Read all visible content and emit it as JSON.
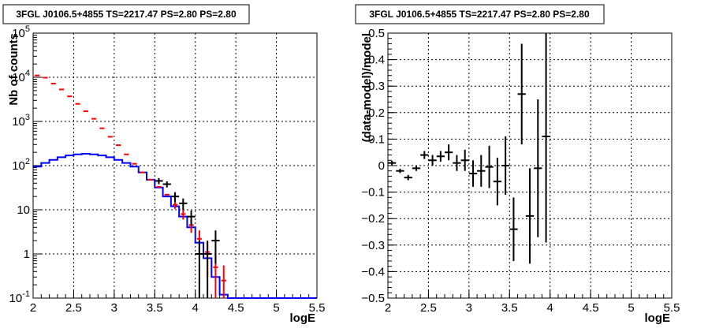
{
  "chart_data": [
    {
      "type": "step",
      "title": "3FGL J0106.5+4855 TS=2217.47 PS=2.80 PS=2.80",
      "xlabel": "logE",
      "ylabel": "Nb of counts",
      "xlim": [
        2,
        5.5
      ],
      "ylim": [
        0.1,
        100000
      ],
      "yscale": "log",
      "grid": true,
      "x_ticks": [
        "2",
        "2.5",
        "3",
        "3.5",
        "4",
        "4.5",
        "5",
        "5.5"
      ],
      "y_ticks": [
        {
          "value": 0.1,
          "label": "10",
          "exp": "-1"
        },
        {
          "value": 1,
          "label": "1",
          "exp": ""
        },
        {
          "value": 10,
          "label": "10",
          "exp": ""
        },
        {
          "value": 100,
          "label": "10",
          "exp": "2"
        },
        {
          "value": 1000,
          "label": "10",
          "exp": "3"
        },
        {
          "value": 10000,
          "label": "10",
          "exp": "4"
        },
        {
          "value": 100000,
          "label": "10",
          "exp": "5"
        }
      ],
      "series": [
        {
          "color": "#0000ff",
          "bin_width": 0.1,
          "x": [
            2.05,
            2.15,
            2.25,
            2.35,
            2.45,
            2.55,
            2.65,
            2.75,
            2.85,
            2.95,
            3.05,
            3.15,
            3.25,
            3.35,
            3.45,
            3.55,
            3.65,
            3.75,
            3.85,
            3.95,
            4.05,
            4.15,
            4.25,
            4.35,
            4.45,
            4.55,
            4.65,
            4.75,
            4.85,
            4.95,
            5.05,
            5.15,
            5.25,
            5.35,
            5.45
          ],
          "y": [
            95,
            115,
            135,
            155,
            170,
            180,
            185,
            180,
            170,
            155,
            135,
            115,
            95,
            70,
            48,
            32,
            20,
            12,
            7,
            4,
            1.8,
            0.8,
            0.3,
            0.12,
            0.1,
            0.1,
            0.1,
            0.1,
            0.1,
            0.1,
            0.1,
            0.1,
            0.1,
            0.1,
            0.1
          ]
        },
        {
          "color": "#ff0000",
          "bin_width": 0.1,
          "x": [
            2.05,
            2.15,
            2.25,
            2.35,
            2.45,
            2.55,
            2.65,
            2.75,
            2.85,
            2.95,
            3.05,
            3.15,
            3.25,
            3.35,
            3.45,
            3.55,
            3.65,
            3.75,
            3.85,
            3.95,
            4.05,
            4.15,
            4.25,
            4.35
          ],
          "y": [
            11000,
            9800,
            7200,
            5300,
            3700,
            2500,
            1700,
            1150,
            700,
            450,
            290,
            180,
            110,
            70,
            48,
            33,
            22,
            13,
            8,
            4.5,
            2.2,
            1.1,
            0.5,
            0.25
          ],
          "err": [
            0,
            0,
            0,
            0,
            0,
            0,
            0,
            0,
            0,
            0,
            0,
            0,
            0,
            0,
            0,
            0,
            0,
            2.5,
            2,
            1.5,
            1.2,
            0.8,
            0.5,
            0.3
          ]
        },
        {
          "color": "#000000",
          "x": [
            3.55,
            3.65,
            3.75,
            3.85,
            3.95,
            4.05,
            4.15,
            4.25
          ],
          "y": [
            45,
            38,
            20,
            14,
            7,
            1,
            1,
            2
          ],
          "err": [
            7,
            6,
            5,
            4,
            2.6,
            1,
            1,
            1.4
          ]
        }
      ]
    },
    {
      "type": "errorbar",
      "title": "3FGL J0106.5+4855 TS=2217.47 PS=2.80 PS=2.80",
      "xlabel": "logE",
      "ylabel": "(data-model)/model",
      "xlim": [
        2,
        5.5
      ],
      "ylim": [
        -0.5,
        0.5
      ],
      "grid": true,
      "x_ticks": [
        "2",
        "2.5",
        "3",
        "3.5",
        "4",
        "4.5",
        "5",
        "5.5"
      ],
      "y_ticks": [
        "−0.5",
        "−0.4",
        "−0.3",
        "−0.2",
        "−0.1",
        "0",
        "0.1",
        "0.2",
        "0.3",
        "0.4",
        "0.5"
      ],
      "points": {
        "x": [
          2.05,
          2.15,
          2.25,
          2.35,
          2.45,
          2.55,
          2.65,
          2.75,
          2.85,
          2.95,
          3.05,
          3.15,
          3.25,
          3.35,
          3.45,
          3.55,
          3.65,
          3.75,
          3.85,
          3.95
        ],
        "y": [
          0.01,
          -0.02,
          -0.045,
          -0.01,
          0.04,
          0.02,
          0.035,
          0.05,
          0.01,
          0.02,
          -0.03,
          -0.02,
          -0.005,
          -0.06,
          0.0,
          -0.24,
          0.27,
          -0.19,
          -0.01,
          0.11
        ],
        "err": [
          0.008,
          0.008,
          0.01,
          0.01,
          0.015,
          0.02,
          0.02,
          0.03,
          0.03,
          0.04,
          0.05,
          0.06,
          0.08,
          0.09,
          0.11,
          0.12,
          0.19,
          0.18,
          0.26,
          0.4
        ]
      }
    }
  ]
}
